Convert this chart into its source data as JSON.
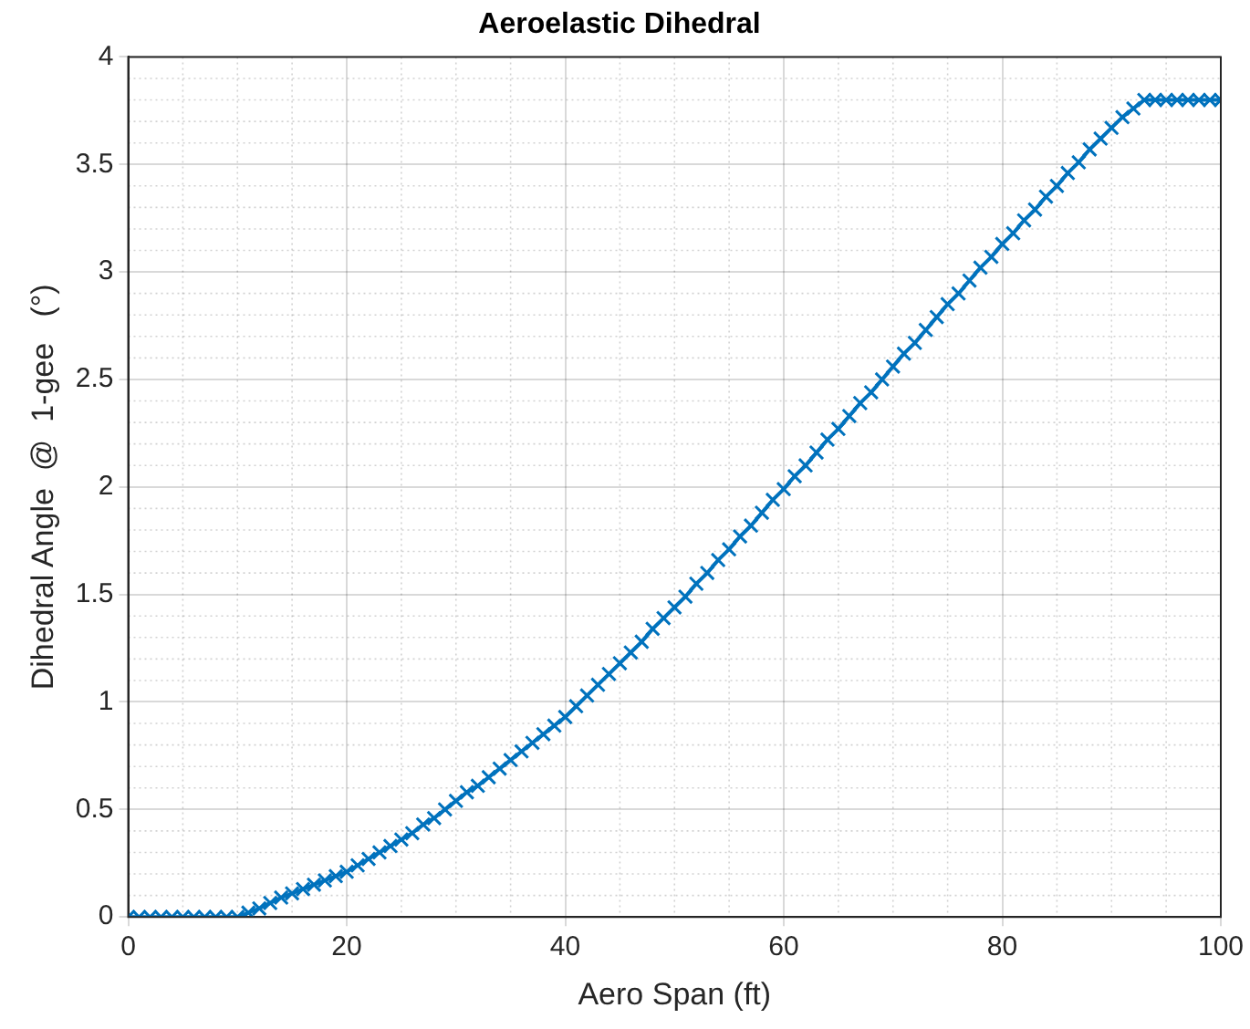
{
  "chart_data": {
    "type": "line",
    "title": "Aeroelastic Dihedral",
    "xlabel": "Aero Span (ft)",
    "ylabel": "Dihedral Angle  @  1-gee   (°)",
    "x": [
      0,
      1,
      2,
      3,
      4,
      5,
      6,
      7,
      8,
      9,
      10,
      11,
      12,
      13,
      14,
      15,
      16,
      17,
      18,
      19,
      20,
      21,
      22,
      23,
      24,
      25,
      26,
      27,
      28,
      29,
      30,
      31,
      32,
      33,
      34,
      35,
      36,
      37,
      38,
      39,
      40,
      41,
      42,
      43,
      44,
      45,
      46,
      47,
      48,
      49,
      50,
      51,
      52,
      53,
      54,
      55,
      56,
      57,
      58,
      59,
      60,
      61,
      62,
      63,
      64,
      65,
      66,
      67,
      68,
      69,
      70,
      71,
      72,
      73,
      74,
      75,
      76,
      77,
      78,
      79,
      80,
      81,
      82,
      83,
      84,
      85,
      86,
      87,
      88,
      89,
      90,
      91,
      92,
      93,
      94,
      95,
      96,
      97,
      98,
      99,
      100
    ],
    "series": [
      {
        "color": "#0072bd",
        "values": [
          0,
          0,
          0,
          0,
          0,
          0,
          0,
          0,
          0,
          0,
          0,
          0.02,
          0.04,
          0.065,
          0.09,
          0.11,
          0.13,
          0.15,
          0.17,
          0.19,
          0.21,
          0.24,
          0.27,
          0.3,
          0.33,
          0.36,
          0.39,
          0.43,
          0.46,
          0.5,
          0.54,
          0.58,
          0.61,
          0.65,
          0.69,
          0.73,
          0.77,
          0.81,
          0.85,
          0.89,
          0.93,
          0.98,
          1.03,
          1.08,
          1.13,
          1.18,
          1.23,
          1.28,
          1.34,
          1.39,
          1.44,
          1.49,
          1.55,
          1.6,
          1.66,
          1.71,
          1.77,
          1.82,
          1.88,
          1.94,
          1.99,
          2.05,
          2.1,
          2.16,
          2.22,
          2.27,
          2.33,
          2.39,
          2.44,
          2.5,
          2.56,
          2.62,
          2.67,
          2.73,
          2.79,
          2.85,
          2.9,
          2.96,
          3.02,
          3.07,
          3.13,
          3.18,
          3.24,
          3.29,
          3.35,
          3.4,
          3.46,
          3.51,
          3.57,
          3.62,
          3.67,
          3.72,
          3.76,
          3.8,
          3.8,
          3.8,
          3.8,
          3.8,
          3.8,
          3.8,
          3.8
        ]
      }
    ],
    "xlim": [
      0,
      100
    ],
    "xticks": [
      0,
      20,
      40,
      60,
      80,
      100
    ],
    "ylim": [
      0,
      4
    ],
    "yticks": [
      0,
      0.5,
      1,
      1.5,
      2,
      2.5,
      3,
      3.5,
      4
    ],
    "grid": true,
    "marker": "cross",
    "line_style": "solid",
    "legend": false
  }
}
